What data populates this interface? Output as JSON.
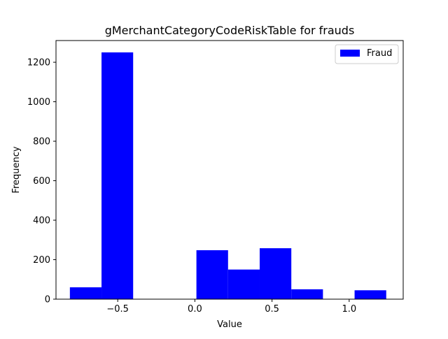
{
  "chart_data": {
    "type": "bar",
    "title": "gMerchantCategoryCodeRiskTable for frauds",
    "xlabel": "Value",
    "ylabel": "Frequency",
    "xlim": [
      -0.9,
      1.35
    ],
    "ylim": [
      0,
      1310
    ],
    "xticks": [
      {
        "value": -0.5,
        "label": "−0.5"
      },
      {
        "value": 0.0,
        "label": "0.0"
      },
      {
        "value": 0.5,
        "label": "0.5"
      },
      {
        "value": 1.0,
        "label": "1.0"
      }
    ],
    "yticks": [
      {
        "value": 0,
        "label": "0"
      },
      {
        "value": 200,
        "label": "200"
      },
      {
        "value": 400,
        "label": "400"
      },
      {
        "value": 600,
        "label": "600"
      },
      {
        "value": 800,
        "label": "800"
      },
      {
        "value": 1000,
        "label": "1000"
      },
      {
        "value": 1200,
        "label": "1200"
      }
    ],
    "grid": false,
    "legend_position": "top-right",
    "series": [
      {
        "name": "Fraud",
        "color": "#0000ff",
        "bins": [
          {
            "x0": -0.81,
            "x1": -0.605,
            "value": 60
          },
          {
            "x0": -0.605,
            "x1": -0.4,
            "value": 1250
          },
          {
            "x0": -0.4,
            "x1": -0.195,
            "value": 0
          },
          {
            "x0": -0.195,
            "x1": 0.01,
            "value": 0
          },
          {
            "x0": 0.01,
            "x1": 0.215,
            "value": 248
          },
          {
            "x0": 0.215,
            "x1": 0.42,
            "value": 150
          },
          {
            "x0": 0.42,
            "x1": 0.625,
            "value": 258
          },
          {
            "x0": 0.625,
            "x1": 0.83,
            "value": 50
          },
          {
            "x0": 0.83,
            "x1": 1.035,
            "value": 0
          },
          {
            "x0": 1.035,
            "x1": 1.24,
            "value": 45
          }
        ]
      }
    ]
  }
}
